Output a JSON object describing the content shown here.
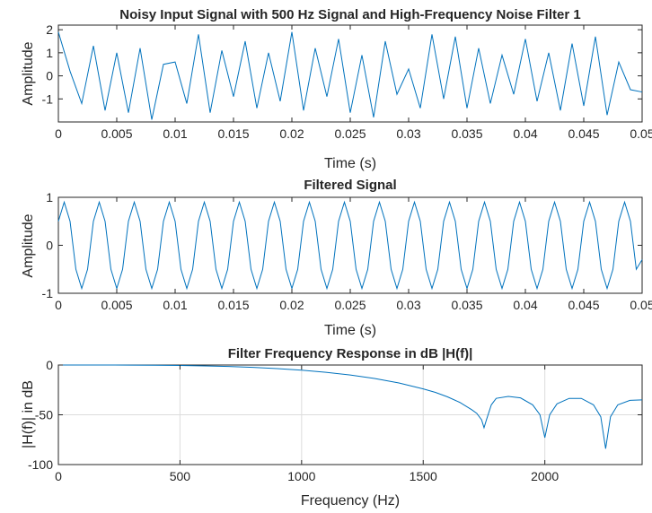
{
  "chart_data": [
    {
      "type": "line",
      "title": "Noisy Input Signal with 500 Hz Signal and High-Frequency Noise Filter 1",
      "xlabel": "Time (s)",
      "ylabel": "Amplitude",
      "xlim": [
        0,
        0.05
      ],
      "ylim": [
        -2,
        2.2
      ],
      "xticks": [
        0,
        0.005,
        0.01,
        0.015,
        0.02,
        0.025,
        0.03,
        0.035,
        0.04,
        0.045,
        0.05
      ],
      "xticklabels": [
        "0",
        "0.005",
        "0.01",
        "0.015",
        "0.02",
        "0.025",
        "0.03",
        "0.035",
        "0.04",
        "0.045",
        "0.05"
      ],
      "yticks": [
        -1,
        0,
        1,
        2
      ],
      "yticklabels": [
        "-1",
        "0",
        "1",
        "2"
      ],
      "grid": false,
      "series": [
        {
          "color": "#0072BD",
          "x": [
            0,
            0.001,
            0.002,
            0.003,
            0.004,
            0.005,
            0.006,
            0.007,
            0.008,
            0.009,
            0.01,
            0.011,
            0.012,
            0.013,
            0.014,
            0.015,
            0.016,
            0.017,
            0.018,
            0.019,
            0.02,
            0.021,
            0.022,
            0.023,
            0.024,
            0.025,
            0.026,
            0.027,
            0.028,
            0.029,
            0.03,
            0.031,
            0.032,
            0.033,
            0.034,
            0.035,
            0.036,
            0.037,
            0.038,
            0.039,
            0.04,
            0.041,
            0.042,
            0.043,
            0.044,
            0.045,
            0.046,
            0.047,
            0.048,
            0.049,
            0.05
          ],
          "y": [
            1.9,
            0.2,
            -1.2,
            1.3,
            -1.5,
            1.0,
            -1.6,
            1.2,
            -1.9,
            0.5,
            0.6,
            -1.2,
            1.8,
            -1.6,
            1.1,
            -0.9,
            1.5,
            -1.4,
            1.0,
            -1.1,
            1.9,
            -1.5,
            1.2,
            -0.9,
            1.6,
            -1.6,
            0.9,
            -1.8,
            1.5,
            -0.8,
            0.3,
            -1.4,
            1.8,
            -1.0,
            1.7,
            -1.4,
            1.2,
            -1.2,
            0.9,
            -0.8,
            1.6,
            -1.1,
            1.0,
            -1.5,
            1.4,
            -1.3,
            1.7,
            -1.7,
            0.6,
            -0.6,
            -0.7
          ]
        }
      ]
    },
    {
      "type": "line",
      "title": "Filtered Signal",
      "xlabel": "Time (s)",
      "ylabel": "Amplitude",
      "xlim": [
        0,
        0.05
      ],
      "ylim": [
        -1,
        1
      ],
      "xticks": [
        0,
        0.005,
        0.01,
        0.015,
        0.02,
        0.025,
        0.03,
        0.035,
        0.04,
        0.045,
        0.05
      ],
      "xticklabels": [
        "0",
        "0.005",
        "0.01",
        "0.015",
        "0.02",
        "0.025",
        "0.03",
        "0.035",
        "0.04",
        "0.045",
        "0.05"
      ],
      "yticks": [
        -1,
        0,
        1
      ],
      "yticklabels": [
        "-1",
        "0",
        "1"
      ],
      "grid": false,
      "series": [
        {
          "color": "#0072BD",
          "x": [
            0,
            0.0005,
            0.001,
            0.0015,
            0.002,
            0.0025,
            0.003,
            0.0035,
            0.004,
            0.0045,
            0.005,
            0.0055,
            0.006,
            0.0065,
            0.007,
            0.0075,
            0.008,
            0.0085,
            0.009,
            0.0095,
            0.01,
            0.0105,
            0.011,
            0.0115,
            0.012,
            0.0125,
            0.013,
            0.0135,
            0.014,
            0.0145,
            0.015,
            0.0155,
            0.016,
            0.0165,
            0.017,
            0.0175,
            0.018,
            0.0185,
            0.019,
            0.0195,
            0.02,
            0.0205,
            0.021,
            0.0215,
            0.022,
            0.0225,
            0.023,
            0.0235,
            0.024,
            0.0245,
            0.025,
            0.0255,
            0.026,
            0.0265,
            0.027,
            0.0275,
            0.028,
            0.0285,
            0.029,
            0.0295,
            0.03,
            0.0305,
            0.031,
            0.0315,
            0.032,
            0.0325,
            0.033,
            0.0335,
            0.034,
            0.0345,
            0.035,
            0.0355,
            0.036,
            0.0365,
            0.037,
            0.0375,
            0.038,
            0.0385,
            0.039,
            0.0395,
            0.04,
            0.0405,
            0.041,
            0.0415,
            0.042,
            0.0425,
            0.043,
            0.0435,
            0.044,
            0.0445,
            0.045,
            0.0455,
            0.046,
            0.0465,
            0.047,
            0.0475,
            0.048,
            0.0485,
            0.049,
            0.0495,
            0.05
          ],
          "y": [
            0.5,
            0.9,
            0.5,
            -0.5,
            -0.9,
            -0.5,
            0.5,
            0.9,
            0.5,
            -0.5,
            -0.9,
            -0.5,
            0.5,
            0.9,
            0.5,
            -0.5,
            -0.9,
            -0.5,
            0.5,
            0.9,
            0.5,
            -0.5,
            -0.9,
            -0.5,
            0.5,
            0.9,
            0.5,
            -0.5,
            -0.9,
            -0.5,
            0.5,
            0.9,
            0.5,
            -0.5,
            -0.9,
            -0.5,
            0.5,
            0.9,
            0.5,
            -0.5,
            -0.9,
            -0.5,
            0.5,
            0.9,
            0.5,
            -0.5,
            -0.9,
            -0.5,
            0.5,
            0.9,
            0.5,
            -0.5,
            -0.9,
            -0.5,
            0.5,
            0.9,
            0.5,
            -0.5,
            -0.9,
            -0.5,
            0.5,
            0.9,
            0.5,
            -0.5,
            -0.9,
            -0.5,
            0.5,
            0.9,
            0.5,
            -0.5,
            -0.9,
            -0.5,
            0.5,
            0.9,
            0.5,
            -0.5,
            -0.9,
            -0.5,
            0.5,
            0.9,
            0.5,
            -0.5,
            -0.9,
            -0.5,
            0.5,
            0.9,
            0.5,
            -0.5,
            -0.9,
            -0.5,
            0.5,
            0.9,
            0.5,
            -0.5,
            -0.9,
            -0.5,
            0.5,
            0.9,
            0.5,
            -0.5,
            -0.3
          ]
        }
      ]
    },
    {
      "type": "line",
      "title": "Filter Frequency Response in dB |H(f)|",
      "xlabel": "Frequency (Hz)",
      "ylabel": "|H(f)| in dB",
      "xlim": [
        0,
        2400
      ],
      "ylim": [
        -100,
        0
      ],
      "xticks": [
        0,
        500,
        1000,
        1500,
        2000
      ],
      "xticklabels": [
        "0",
        "500",
        "1000",
        "1500",
        "2000"
      ],
      "yticks": [
        -100,
        -50,
        0
      ],
      "yticklabels": [
        "-100",
        "-50",
        "0"
      ],
      "grid": true,
      "series": [
        {
          "color": "#0072BD",
          "x": [
            0,
            100,
            200,
            300,
            400,
            500,
            600,
            700,
            800,
            900,
            1000,
            1100,
            1200,
            1300,
            1400,
            1500,
            1550,
            1600,
            1650,
            1700,
            1720,
            1740,
            1750,
            1760,
            1780,
            1800,
            1850,
            1900,
            1950,
            1980,
            2000,
            2020,
            2050,
            2100,
            2150,
            2200,
            2230,
            2250,
            2270,
            2300,
            2350,
            2400
          ],
          "y": [
            0,
            0,
            0,
            -0.1,
            -0.2,
            -0.5,
            -0.9,
            -1.5,
            -2.4,
            -3.6,
            -5.2,
            -7.3,
            -10,
            -13.5,
            -18,
            -24,
            -27.5,
            -32,
            -37.5,
            -45,
            -48.5,
            -55,
            -63,
            -55,
            -40,
            -33.5,
            -31.5,
            -33,
            -40,
            -50,
            -73,
            -50,
            -39,
            -33.5,
            -33.5,
            -40,
            -52,
            -84,
            -52,
            -40,
            -35.5,
            -35
          ]
        }
      ]
    }
  ]
}
